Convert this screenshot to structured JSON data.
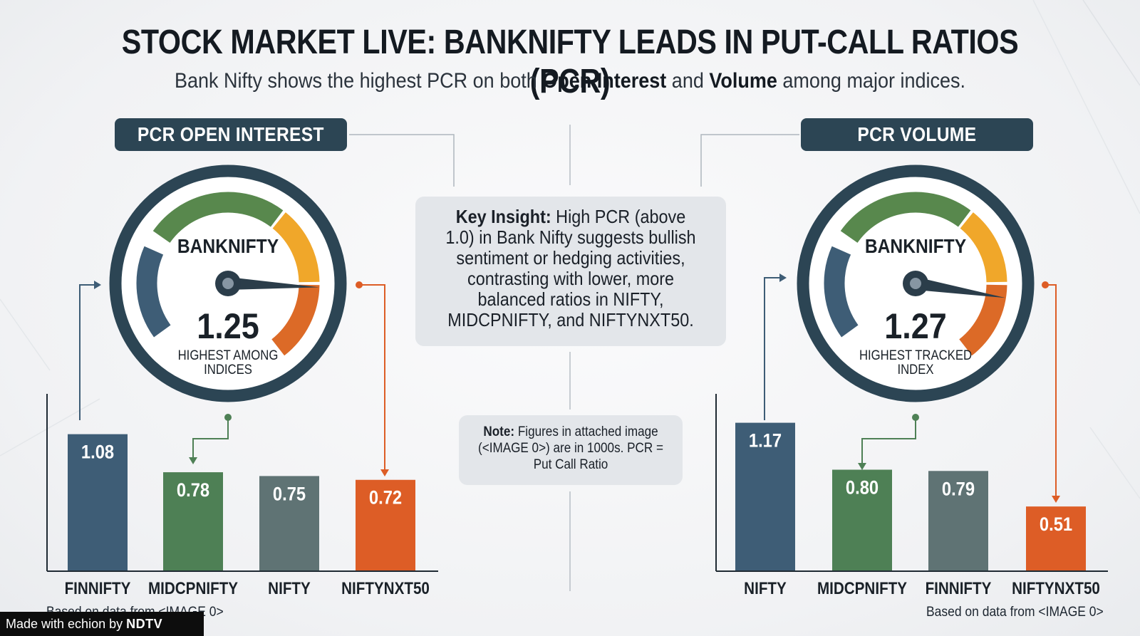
{
  "title": "STOCK MARKET LIVE: BANKNIFTY LEADS IN PUT-CALL RATIOS (PCR)",
  "subtitle": {
    "part1": "Bank Nifty shows the highest PCR on both ",
    "bold1": "Open Interest",
    "part2": " and ",
    "bold2": "Volume",
    "part3": " among major indices."
  },
  "insight": {
    "label": "Key Insight:",
    "text": "High PCR (above 1.0) in Bank Nifty suggests bullish sentiment or hedging activities, contrasting with lower, more balanced ratios in NIFTY, MIDCPNIFTY, and NIFTYNXT50."
  },
  "note": {
    "label": "Note:",
    "text": "Figures in attached image (<IMAGE 0>) are in 1000s. PCR = Put Call Ratio"
  },
  "footer": {
    "source_left": "Based on data from <IMAGE 0>",
    "source_right": "Based on data from <IMAGE 0>",
    "made_with": "Made with ",
    "echion": "echion",
    "by": " by ",
    "ndtv": "NDTV"
  },
  "colors": {
    "navy": "#2c4554",
    "dark": "#2b3d4a",
    "blue": "#3e5d76",
    "green": "#4e8055",
    "gray": "#5f7374",
    "orange": "#dd5d26",
    "amber": "#f0a72a",
    "gauge_green": "#58884d",
    "gauge_orange": "#dc6a27"
  },
  "chart_data": [
    {
      "type": "bar",
      "title": "PCR OPEN INTEREST",
      "gauge": {
        "label": "BANKNIFTY",
        "value": "1.25",
        "caption_line1": "HIGHEST AMONG",
        "caption_line2": "INDICES",
        "needle_value": 1.25
      },
      "categories": [
        "FINNIFTY",
        "MIDCPNIFTY",
        "NIFTY",
        "NIFTYNXT50"
      ],
      "values": [
        1.08,
        0.78,
        0.75,
        0.72
      ],
      "value_labels": [
        "1.08",
        "0.78",
        "0.75",
        "0.72"
      ],
      "bar_colors": [
        "#3e5d76",
        "#4e8055",
        "#5f7374",
        "#dd5d26"
      ],
      "ylim": [
        0,
        1.3
      ]
    },
    {
      "type": "bar",
      "title": "PCR VOLUME",
      "gauge": {
        "label": "BANKNIFTY",
        "value": "1.27",
        "caption_line1": "HIGHEST TRACKED",
        "caption_line2": "INDEX",
        "needle_value": 1.27
      },
      "categories": [
        "NIFTY",
        "MIDCPNIFTY",
        "FINNIFTY",
        "NIFTYNXT50"
      ],
      "values": [
        1.17,
        0.8,
        0.79,
        0.51
      ],
      "value_labels": [
        "1.17",
        "0.80",
        "0.79",
        "0.51"
      ],
      "bar_colors": [
        "#3e5d76",
        "#4e8055",
        "#5f7374",
        "#dd5d26"
      ],
      "ylim": [
        0,
        1.3
      ]
    }
  ]
}
